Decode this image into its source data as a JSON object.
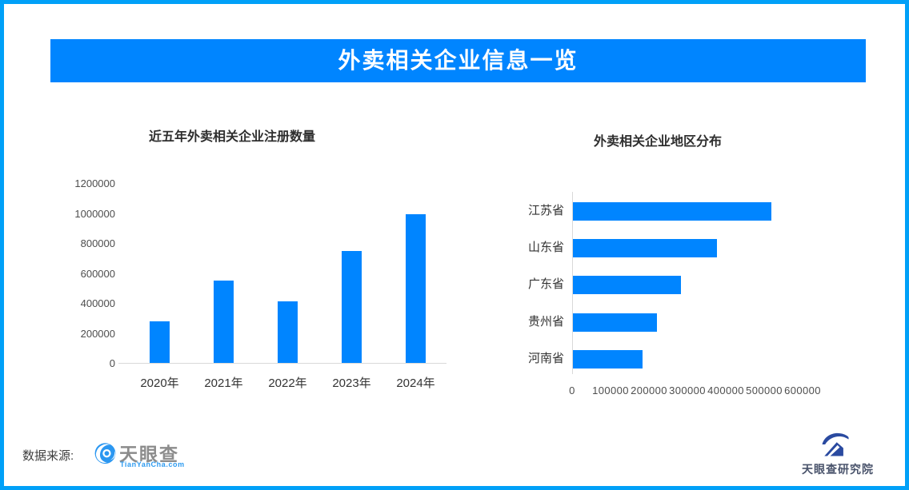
{
  "banner": {
    "title": "外卖相关企业信息一览"
  },
  "colors": {
    "accent_blue": "#0085FF",
    "frame_border": "#00A0F8",
    "bar_blue": "#0085FF",
    "axis_gray": "#D9D9D9",
    "text_dark": "#333333",
    "tick_gray": "#4D4D4D"
  },
  "chart_data": [
    {
      "type": "bar",
      "title": "近五年外卖相关企业注册数量",
      "categories": [
        "2020年",
        "2021年",
        "2022年",
        "2023年",
        "2024年"
      ],
      "values": [
        280000,
        550000,
        410000,
        745000,
        990000
      ],
      "xlabel": "",
      "ylabel": "",
      "ylim": [
        0,
        1200000
      ],
      "yticks": [
        "0",
        "200000",
        "400000",
        "600000",
        "800000",
        "1000000",
        "1200000"
      ],
      "grid": false,
      "legend": false,
      "bar_color": "#0085FF"
    },
    {
      "type": "bar-horizontal",
      "title": "外卖相关企业地区分布",
      "categories": [
        "江苏省",
        "山东省",
        "广东省",
        "贵州省",
        "河南省"
      ],
      "values": [
        516000,
        374000,
        282000,
        219000,
        182000
      ],
      "xlim": [
        0,
        600000
      ],
      "xticks": [
        "0",
        "100000",
        "200000",
        "300000",
        "400000",
        "500000",
        "600000"
      ],
      "grid": false,
      "legend": false,
      "bar_color": "#0085FF"
    }
  ],
  "footer": {
    "source_label": "数据来源:",
    "tianyancha_logo": {
      "icon": "tianyancha-eye-icon",
      "name": "天眼查",
      "url_text": "TianYanCha.com"
    },
    "institute_logo": {
      "icon": "tianyancha-institute-icon",
      "name": "天眼查研究院"
    }
  }
}
